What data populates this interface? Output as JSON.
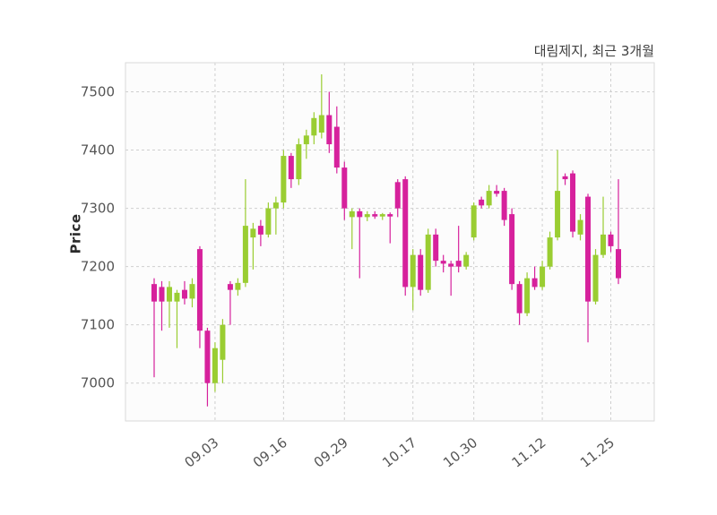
{
  "header": {
    "title": "대림제지, 최근 3개월"
  },
  "axes": {
    "ylabel": "Price"
  },
  "chart_data": {
    "type": "candlestick",
    "title": "대림제지, 최근 3개월",
    "ylabel": "Price",
    "ylim": [
      6935,
      7550
    ],
    "yticks": [
      7000,
      7100,
      7200,
      7300,
      7400,
      7500
    ],
    "xticks": [
      {
        "index": 8,
        "label": "09.03"
      },
      {
        "index": 17,
        "label": "09.16"
      },
      {
        "index": 25,
        "label": "09.29"
      },
      {
        "index": 34,
        "label": "10.17"
      },
      {
        "index": 42,
        "label": "10.30"
      },
      {
        "index": 51,
        "label": "11.12"
      },
      {
        "index": 60,
        "label": "11.25"
      }
    ],
    "grid": true,
    "legend": "none",
    "colors": {
      "up": "#9acd32",
      "down": "#d6219c",
      "grid": "#cfcfcf",
      "plot_bg": "#fcfcfc",
      "border": "#d9d9d9",
      "tick_text": "#555555",
      "title_text": "#3d3d3d"
    },
    "candles": [
      [
        7170,
        7180,
        7010,
        7140
      ],
      [
        7165,
        7175,
        7090,
        7140
      ],
      [
        7140,
        7175,
        7095,
        7165
      ],
      [
        7140,
        7160,
        7060,
        7155
      ],
      [
        7160,
        7175,
        7135,
        7145
      ],
      [
        7145,
        7180,
        7130,
        7170
      ],
      [
        7230,
        7235,
        7060,
        7090
      ],
      [
        7090,
        7095,
        6960,
        7000
      ],
      [
        7000,
        7070,
        6985,
        7060
      ],
      [
        7040,
        7110,
        7000,
        7100
      ],
      [
        7170,
        7175,
        7100,
        7160
      ],
      [
        7160,
        7180,
        7150,
        7172
      ],
      [
        7172,
        7350,
        7165,
        7270
      ],
      [
        7250,
        7275,
        7195,
        7265
      ],
      [
        7270,
        7280,
        7235,
        7255
      ],
      [
        7255,
        7310,
        7250,
        7300
      ],
      [
        7300,
        7320,
        7255,
        7310
      ],
      [
        7310,
        7400,
        7300,
        7390
      ],
      [
        7390,
        7395,
        7335,
        7350
      ],
      [
        7350,
        7420,
        7340,
        7410
      ],
      [
        7410,
        7435,
        7385,
        7425
      ],
      [
        7425,
        7465,
        7410,
        7455
      ],
      [
        7430,
        7530,
        7420,
        7460
      ],
      [
        7460,
        7500,
        7395,
        7410
      ],
      [
        7440,
        7475,
        7360,
        7370
      ],
      [
        7370,
        7380,
        7280,
        7300
      ],
      [
        7285,
        7300,
        7230,
        7295
      ],
      [
        7295,
        7300,
        7180,
        7285
      ],
      [
        7285,
        7295,
        7278,
        7290
      ],
      [
        7290,
        7295,
        7282,
        7286
      ],
      [
        7286,
        7292,
        7280,
        7290
      ],
      [
        7290,
        7293,
        7240,
        7286
      ],
      [
        7345,
        7350,
        7285,
        7300
      ],
      [
        7350,
        7355,
        7150,
        7165
      ],
      [
        7165,
        7230,
        7125,
        7220
      ],
      [
        7220,
        7230,
        7150,
        7160
      ],
      [
        7160,
        7265,
        7155,
        7255
      ],
      [
        7255,
        7265,
        7200,
        7210
      ],
      [
        7210,
        7220,
        7190,
        7205
      ],
      [
        7205,
        7210,
        7150,
        7200
      ],
      [
        7210,
        7270,
        7190,
        7200
      ],
      [
        7200,
        7225,
        7195,
        7220
      ],
      [
        7250,
        7310,
        7245,
        7305
      ],
      [
        7315,
        7320,
        7300,
        7305
      ],
      [
        7305,
        7340,
        7300,
        7330
      ],
      [
        7330,
        7340,
        7320,
        7325
      ],
      [
        7330,
        7335,
        7270,
        7280
      ],
      [
        7290,
        7300,
        7160,
        7170
      ],
      [
        7170,
        7175,
        7100,
        7120
      ],
      [
        7120,
        7190,
        7115,
        7180
      ],
      [
        7180,
        7200,
        7160,
        7165
      ],
      [
        7165,
        7210,
        7160,
        7200
      ],
      [
        7200,
        7260,
        7195,
        7250
      ],
      [
        7250,
        7400,
        7245,
        7330
      ],
      [
        7355,
        7360,
        7340,
        7350
      ],
      [
        7360,
        7365,
        7250,
        7260
      ],
      [
        7255,
        7290,
        7245,
        7280
      ],
      [
        7320,
        7325,
        7070,
        7140
      ],
      [
        7140,
        7230,
        7135,
        7220
      ],
      [
        7220,
        7320,
        7215,
        7255
      ],
      [
        7255,
        7260,
        7225,
        7235
      ],
      [
        7230,
        7350,
        7170,
        7180
      ]
    ]
  }
}
